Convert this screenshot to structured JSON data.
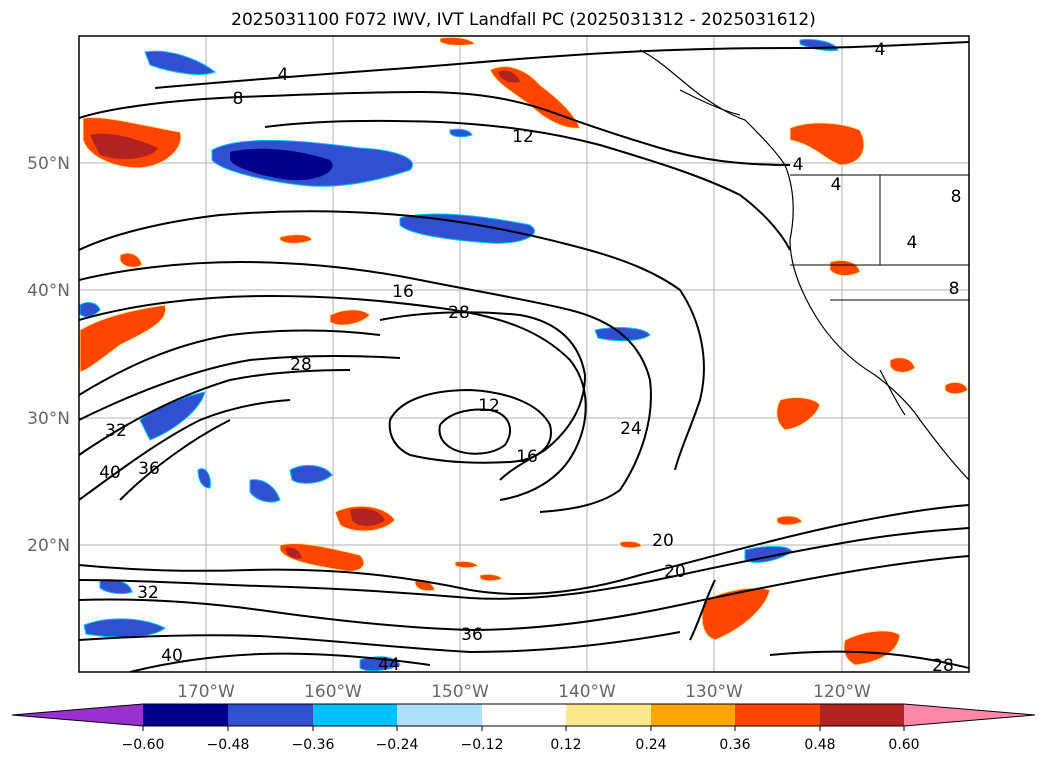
{
  "title": "2025031100 F072 IWV, IVT Landfall PC (2025031312 - 2025031612)",
  "lat_ticks": [
    "50°N",
    "40°N",
    "30°N",
    "20°N"
  ],
  "lon_ticks": [
    "170°W",
    "160°W",
    "150°W",
    "140°W",
    "130°W",
    "120°W"
  ],
  "contour_labels": [
    "4",
    "4",
    "4",
    "4",
    "4",
    "8",
    "8",
    "8",
    "12",
    "12",
    "16",
    "16",
    "20",
    "20",
    "24",
    "28",
    "28",
    "28",
    "32",
    "32",
    "36",
    "36",
    "40",
    "40",
    "44"
  ],
  "colorbar": {
    "ticks": [
      "−0.60",
      "−0.48",
      "−0.36",
      "−0.24",
      "−0.12",
      "0.12",
      "0.24",
      "0.36",
      "0.48",
      "0.60"
    ],
    "colors": [
      "#9b30d0",
      "#00008b",
      "#3050d0",
      "#00bfff",
      "#aee0fb",
      "#ffffff",
      "#fde98c",
      "#ffa500",
      "#ff4500",
      "#b22222",
      "#ff88a8"
    ]
  }
}
